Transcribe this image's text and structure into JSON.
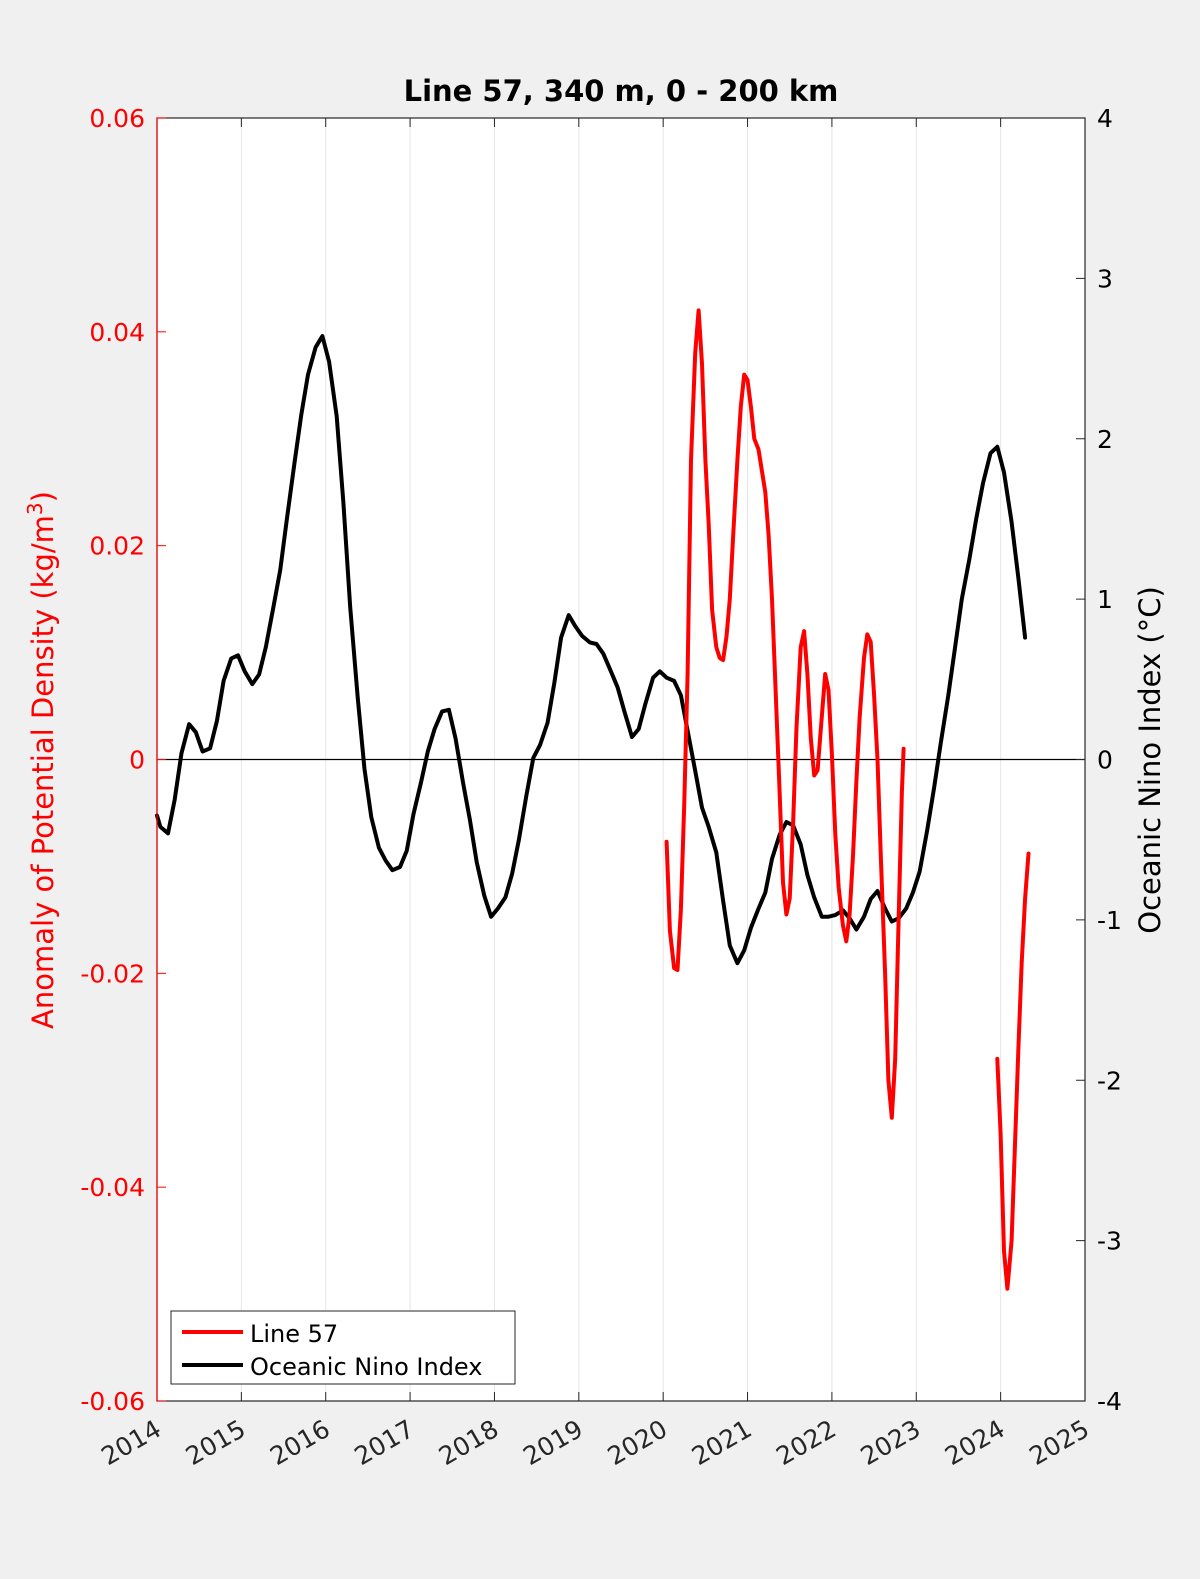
{
  "chart_data": {
    "type": "line",
    "title": "Line 57, 340 m, 0 - 200 km",
    "ylabel_left": "Anomaly of Potential Density (kg/m",
    "ylabel_left_sup": "3",
    "ylabel_left_close": ")",
    "ylabel_right": "Oceanic Nino Index (°C)",
    "xlim": [
      2014,
      2025
    ],
    "ylim_left": [
      -0.06,
      0.06
    ],
    "ylim_right": [
      -4,
      4
    ],
    "x_ticks": [
      "2014",
      "2015",
      "2016",
      "2017",
      "2018",
      "2019",
      "2020",
      "2021",
      "2022",
      "2023",
      "2024",
      "2025"
    ],
    "y_left_ticks": [
      "0.06",
      "0.04",
      "0.02",
      "0",
      "-0.02",
      "-0.04",
      "-0.06"
    ],
    "y_right_ticks": [
      "4",
      "3",
      "2",
      "1",
      "0",
      "-1",
      "-2",
      "-3",
      "-4"
    ],
    "colors": {
      "line57": "#ff0000",
      "oni": "#000000",
      "left_axis": "#ff0000",
      "right_axis": "#000000"
    },
    "grid": "vertical",
    "legend_position": "bottom-left",
    "legend": [
      "Line 57",
      "Oceanic Nino Index"
    ],
    "series": [
      {
        "name": "Line 57",
        "axis": "left",
        "segments": [
          [
            [
              2020.04,
              -0.0077
            ],
            [
              2020.08,
              -0.016
            ],
            [
              2020.13,
              -0.0195
            ],
            [
              2020.17,
              -0.0197
            ],
            [
              2020.21,
              -0.014
            ],
            [
              2020.25,
              -0.004
            ],
            [
              2020.29,
              0.008
            ],
            [
              2020.33,
              0.028
            ],
            [
              2020.38,
              0.038
            ],
            [
              2020.42,
              0.042
            ],
            [
              2020.46,
              0.037
            ],
            [
              2020.5,
              0.028
            ],
            [
              2020.54,
              0.022
            ],
            [
              2020.58,
              0.014
            ],
            [
              2020.63,
              0.0105
            ],
            [
              2020.67,
              0.0095
            ],
            [
              2020.71,
              0.0093
            ],
            [
              2020.75,
              0.0115
            ],
            [
              2020.79,
              0.015
            ],
            [
              2020.83,
              0.021
            ],
            [
              2020.88,
              0.028
            ],
            [
              2020.92,
              0.033
            ],
            [
              2020.96,
              0.036
            ],
            [
              2021.0,
              0.0355
            ],
            [
              2021.04,
              0.033
            ],
            [
              2021.08,
              0.03
            ],
            [
              2021.13,
              0.029
            ],
            [
              2021.17,
              0.027
            ],
            [
              2021.21,
              0.025
            ],
            [
              2021.25,
              0.021
            ],
            [
              2021.29,
              0.015
            ],
            [
              2021.33,
              0.007
            ],
            [
              2021.38,
              -0.003
            ],
            [
              2021.42,
              -0.0115
            ],
            [
              2021.46,
              -0.0145
            ],
            [
              2021.5,
              -0.013
            ],
            [
              2021.54,
              -0.006
            ],
            [
              2021.58,
              0.003
            ],
            [
              2021.63,
              0.0105
            ],
            [
              2021.67,
              0.012
            ],
            [
              2021.71,
              0.008
            ],
            [
              2021.75,
              0.002
            ],
            [
              2021.79,
              -0.0015
            ],
            [
              2021.83,
              -0.001
            ],
            [
              2021.88,
              0.004
            ],
            [
              2021.92,
              0.008
            ],
            [
              2021.96,
              0.0065
            ],
            [
              2022.0,
              0.0005
            ],
            [
              2022.04,
              -0.007
            ],
            [
              2022.08,
              -0.012
            ],
            [
              2022.13,
              -0.0155
            ],
            [
              2022.17,
              -0.017
            ],
            [
              2022.21,
              -0.0145
            ],
            [
              2022.25,
              -0.009
            ],
            [
              2022.29,
              -0.002
            ],
            [
              2022.33,
              0.004
            ],
            [
              2022.38,
              0.0095
            ],
            [
              2022.42,
              0.0117
            ],
            [
              2022.46,
              0.011
            ],
            [
              2022.5,
              0.006
            ],
            [
              2022.54,
              0.0
            ],
            [
              2022.58,
              -0.009
            ],
            [
              2022.63,
              -0.02
            ],
            [
              2022.67,
              -0.03
            ],
            [
              2022.71,
              -0.0335
            ],
            [
              2022.75,
              -0.028
            ],
            [
              2022.79,
              -0.015
            ],
            [
              2022.83,
              -0.003
            ],
            [
              2022.85,
              0.001
            ]
          ],
          [
            [
              2023.96,
              -0.028
            ],
            [
              2024.0,
              -0.035
            ],
            [
              2024.04,
              -0.046
            ],
            [
              2024.08,
              -0.0495
            ],
            [
              2024.13,
              -0.045
            ],
            [
              2024.17,
              -0.036
            ],
            [
              2024.21,
              -0.027
            ],
            [
              2024.25,
              -0.019
            ],
            [
              2024.29,
              -0.013
            ],
            [
              2024.33,
              -0.0088
            ]
          ]
        ]
      },
      {
        "name": "Oceanic Nino Index",
        "axis": "right",
        "segments": [
          [
            [
              2014.0,
              -0.35
            ],
            [
              2014.04,
              -0.42
            ],
            [
              2014.13,
              -0.46
            ],
            [
              2014.21,
              -0.25
            ],
            [
              2014.29,
              0.04
            ],
            [
              2014.38,
              0.22
            ],
            [
              2014.46,
              0.17
            ],
            [
              2014.54,
              0.05
            ],
            [
              2014.63,
              0.07
            ],
            [
              2014.71,
              0.24
            ],
            [
              2014.79,
              0.49
            ],
            [
              2014.88,
              0.63
            ],
            [
              2014.96,
              0.65
            ],
            [
              2015.04,
              0.55
            ],
            [
              2015.13,
              0.47
            ],
            [
              2015.21,
              0.53
            ],
            [
              2015.29,
              0.7
            ],
            [
              2015.38,
              0.95
            ],
            [
              2015.46,
              1.18
            ],
            [
              2015.54,
              1.5
            ],
            [
              2015.63,
              1.85
            ],
            [
              2015.71,
              2.15
            ],
            [
              2015.79,
              2.4
            ],
            [
              2015.88,
              2.57
            ],
            [
              2015.96,
              2.64
            ],
            [
              2016.04,
              2.48
            ],
            [
              2016.13,
              2.14
            ],
            [
              2016.21,
              1.6
            ],
            [
              2016.29,
              0.95
            ],
            [
              2016.38,
              0.38
            ],
            [
              2016.46,
              -0.06
            ],
            [
              2016.54,
              -0.36
            ],
            [
              2016.63,
              -0.55
            ],
            [
              2016.71,
              -0.63
            ],
            [
              2016.79,
              -0.69
            ],
            [
              2016.88,
              -0.67
            ],
            [
              2016.96,
              -0.57
            ],
            [
              2017.04,
              -0.34
            ],
            [
              2017.13,
              -0.14
            ],
            [
              2017.21,
              0.05
            ],
            [
              2017.29,
              0.19
            ],
            [
              2017.38,
              0.3
            ],
            [
              2017.46,
              0.31
            ],
            [
              2017.54,
              0.13
            ],
            [
              2017.63,
              -0.15
            ],
            [
              2017.71,
              -0.38
            ],
            [
              2017.79,
              -0.64
            ],
            [
              2017.88,
              -0.85
            ],
            [
              2017.96,
              -0.98
            ],
            [
              2018.04,
              -0.93
            ],
            [
              2018.13,
              -0.86
            ],
            [
              2018.21,
              -0.71
            ],
            [
              2018.29,
              -0.5
            ],
            [
              2018.38,
              -0.22
            ],
            [
              2018.46,
              0.01
            ],
            [
              2018.54,
              0.09
            ],
            [
              2018.63,
              0.23
            ],
            [
              2018.71,
              0.48
            ],
            [
              2018.79,
              0.76
            ],
            [
              2018.88,
              0.9
            ],
            [
              2018.96,
              0.83
            ],
            [
              2019.04,
              0.77
            ],
            [
              2019.13,
              0.73
            ],
            [
              2019.21,
              0.72
            ],
            [
              2019.29,
              0.66
            ],
            [
              2019.38,
              0.55
            ],
            [
              2019.46,
              0.45
            ],
            [
              2019.54,
              0.3
            ],
            [
              2019.63,
              0.14
            ],
            [
              2019.71,
              0.19
            ],
            [
              2019.79,
              0.35
            ],
            [
              2019.88,
              0.51
            ],
            [
              2019.96,
              0.55
            ],
            [
              2020.04,
              0.51
            ],
            [
              2020.13,
              0.49
            ],
            [
              2020.21,
              0.4
            ],
            [
              2020.29,
              0.18
            ],
            [
              2020.38,
              -0.07
            ],
            [
              2020.46,
              -0.3
            ],
            [
              2020.54,
              -0.42
            ],
            [
              2020.63,
              -0.58
            ],
            [
              2020.71,
              -0.88
            ],
            [
              2020.79,
              -1.16
            ],
            [
              2020.88,
              -1.27
            ],
            [
              2020.96,
              -1.19
            ],
            [
              2021.04,
              -1.05
            ],
            [
              2021.13,
              -0.93
            ],
            [
              2021.21,
              -0.83
            ],
            [
              2021.29,
              -0.62
            ],
            [
              2021.38,
              -0.47
            ],
            [
              2021.46,
              -0.39
            ],
            [
              2021.54,
              -0.41
            ],
            [
              2021.63,
              -0.53
            ],
            [
              2021.71,
              -0.72
            ],
            [
              2021.79,
              -0.86
            ],
            [
              2021.88,
              -0.98
            ],
            [
              2021.96,
              -0.98
            ],
            [
              2022.04,
              -0.97
            ],
            [
              2022.13,
              -0.94
            ],
            [
              2022.21,
              -0.99
            ],
            [
              2022.29,
              -1.06
            ],
            [
              2022.38,
              -0.98
            ],
            [
              2022.46,
              -0.87
            ],
            [
              2022.54,
              -0.82
            ],
            [
              2022.63,
              -0.93
            ],
            [
              2022.71,
              -1.01
            ],
            [
              2022.79,
              -0.99
            ],
            [
              2022.88,
              -0.93
            ],
            [
              2022.96,
              -0.83
            ],
            [
              2023.04,
              -0.7
            ],
            [
              2023.13,
              -0.44
            ],
            [
              2023.21,
              -0.18
            ],
            [
              2023.29,
              0.1
            ],
            [
              2023.38,
              0.4
            ],
            [
              2023.46,
              0.7
            ],
            [
              2023.54,
              1.0
            ],
            [
              2023.63,
              1.25
            ],
            [
              2023.71,
              1.5
            ],
            [
              2023.79,
              1.72
            ],
            [
              2023.88,
              1.91
            ],
            [
              2023.96,
              1.95
            ],
            [
              2024.04,
              1.79
            ],
            [
              2024.13,
              1.48
            ],
            [
              2024.21,
              1.13
            ],
            [
              2024.29,
              0.76
            ]
          ]
        ]
      }
    ]
  }
}
